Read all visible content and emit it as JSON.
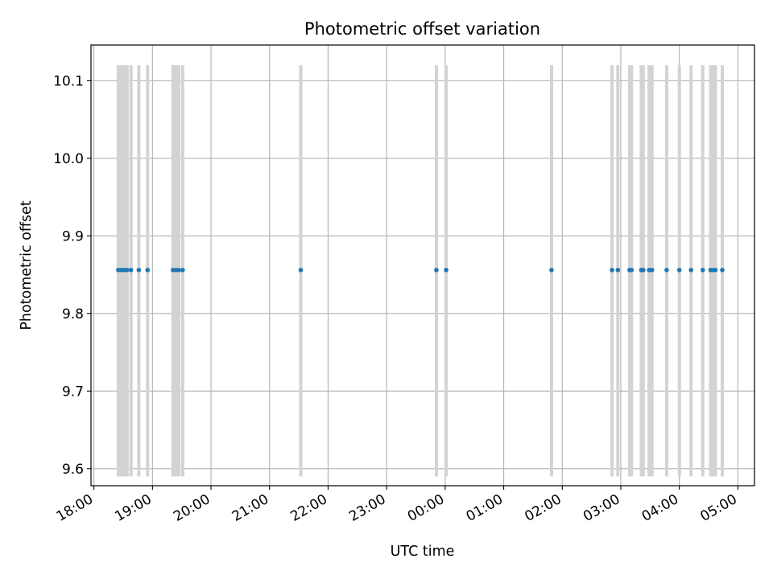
{
  "chart_data": {
    "type": "scatter",
    "title": "Photometric offset variation",
    "xlabel": "UTC time",
    "ylabel": "Photometric offset",
    "x_axis": "time",
    "xlim": [
      "17:57",
      "05:17"
    ],
    "ylim": [
      9.578,
      10.146
    ],
    "x_ticks": [
      "18:00",
      "19:00",
      "20:00",
      "21:00",
      "22:00",
      "23:00",
      "00:00",
      "01:00",
      "02:00",
      "03:00",
      "04:00",
      "05:00"
    ],
    "y_ticks": [
      9.6,
      9.7,
      9.8,
      9.9,
      10.0,
      10.1
    ],
    "y_tick_labels": [
      "9.6",
      "9.7",
      "9.8",
      "9.9",
      "10.0",
      "10.1"
    ],
    "grid": true,
    "colors": {
      "points": "#1f77b4",
      "vlines": "#d3d3d3",
      "grid": "#b0b0b0"
    },
    "vline_range": [
      9.59,
      10.12
    ],
    "series": [
      {
        "points": [
          {
            "x": "18:25",
            "y": 9.856
          },
          {
            "x": "18:28",
            "y": 9.856
          },
          {
            "x": "18:31",
            "y": 9.856
          },
          {
            "x": "18:34",
            "y": 9.856
          },
          {
            "x": "18:38",
            "y": 9.856
          },
          {
            "x": "18:46",
            "y": 9.856
          },
          {
            "x": "18:55",
            "y": 9.856
          },
          {
            "x": "19:21",
            "y": 9.856
          },
          {
            "x": "19:24",
            "y": 9.856
          },
          {
            "x": "19:27",
            "y": 9.856
          },
          {
            "x": "19:31",
            "y": 9.856
          },
          {
            "x": "21:32",
            "y": 9.856
          },
          {
            "x": "23:51",
            "y": 9.856
          },
          {
            "x": "00:01",
            "y": 9.856
          },
          {
            "x": "01:49",
            "y": 9.856
          },
          {
            "x": "02:51",
            "y": 9.856
          },
          {
            "x": "02:57",
            "y": 9.856
          },
          {
            "x": "03:09",
            "y": 9.856
          },
          {
            "x": "03:11",
            "y": 9.856
          },
          {
            "x": "03:21",
            "y": 9.856
          },
          {
            "x": "03:23",
            "y": 9.856
          },
          {
            "x": "03:29",
            "y": 9.856
          },
          {
            "x": "03:32",
            "y": 9.856
          },
          {
            "x": "03:47",
            "y": 9.856
          },
          {
            "x": "04:00",
            "y": 9.856
          },
          {
            "x": "04:12",
            "y": 9.856
          },
          {
            "x": "04:24",
            "y": 9.856
          },
          {
            "x": "04:32",
            "y": 9.856
          },
          {
            "x": "04:35",
            "y": 9.856
          },
          {
            "x": "04:37",
            "y": 9.856
          },
          {
            "x": "04:44",
            "y": 9.856
          }
        ]
      }
    ]
  }
}
